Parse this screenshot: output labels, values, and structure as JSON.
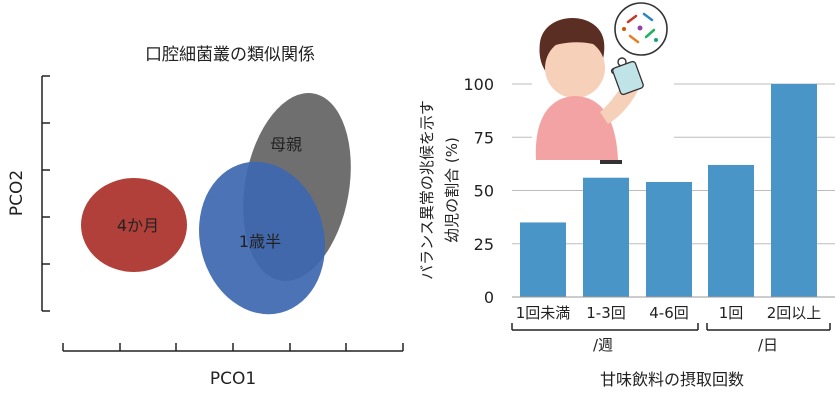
{
  "chart_data": [
    {
      "type": "scatter",
      "title": "口腔細菌叢の類似関係",
      "xlabel": "PCO1",
      "ylabel": "PCO2",
      "clusters": [
        {
          "label": "4か月",
          "color": "#b2403a"
        },
        {
          "label": "1歳半",
          "color": "#3d67b0"
        },
        {
          "label": "母親",
          "color": "#6f6f6f"
        }
      ]
    },
    {
      "type": "bar",
      "ylabel_lines": [
        "バランス異常の兆候を示す",
        "幼児の割合 (%)"
      ],
      "xlabel": "甘味飲料の摂取回数",
      "categories": [
        "1回未満",
        "1-3回",
        "4-6回",
        "1回",
        "2回以上"
      ],
      "groups": [
        {
          "label": "/週",
          "categories": [
            "1回未満",
            "1-3回",
            "4-6回"
          ]
        },
        {
          "label": "/日",
          "categories": [
            "1回",
            "2回以上"
          ]
        }
      ],
      "values": [
        35,
        56,
        54,
        62,
        100
      ],
      "ylim": [
        0,
        100
      ],
      "yticks": [
        "0",
        "25",
        "50",
        "75",
        "100"
      ],
      "bar_color": "#4a95c8",
      "grid": true
    }
  ]
}
